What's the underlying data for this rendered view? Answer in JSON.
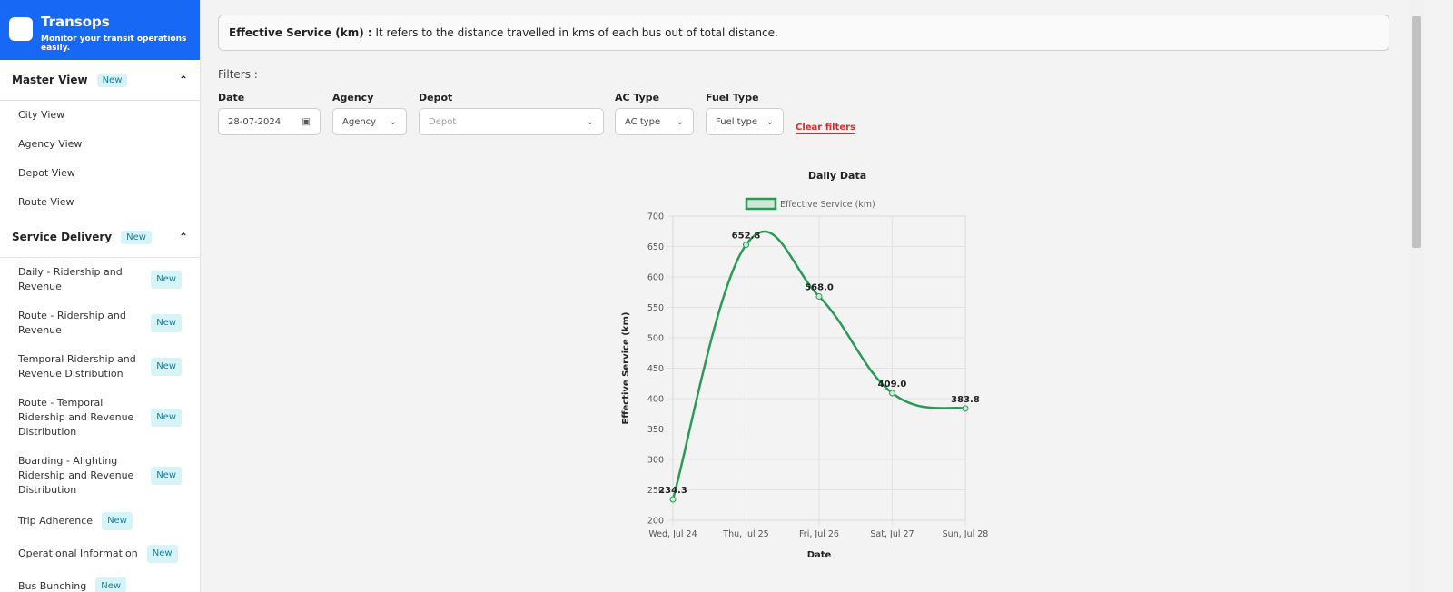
{
  "sidebar": {
    "brand": "Transops",
    "tagline": "Monitor your transit operations easily.",
    "sections": [
      {
        "title": "Master View",
        "badge": "New",
        "items": [
          {
            "label": "City View"
          },
          {
            "label": "Agency View"
          },
          {
            "label": "Depot View"
          },
          {
            "label": "Route View"
          }
        ]
      },
      {
        "title": "Service Delivery",
        "badge": "New",
        "items": [
          {
            "label": "Daily - Ridership and Revenue",
            "badge": "New"
          },
          {
            "label": "Route - Ridership and Revenue",
            "badge": "New"
          },
          {
            "label": "Temporal Ridership and Revenue Distribution",
            "badge": "New"
          },
          {
            "label": "Route - Temporal Ridership and Revenue Distribution",
            "badge": "New"
          },
          {
            "label": "Boarding - Alighting Ridership and Revenue Distribution",
            "badge": "New"
          },
          {
            "label": "Trip Adherence",
            "badge": "New"
          },
          {
            "label": "Operational Information",
            "badge": "New"
          },
          {
            "label": "Bus Bunching",
            "badge": "New"
          }
        ]
      }
    ]
  },
  "info": {
    "term": "Effective Service (km) :",
    "text": "It refers to the distance travelled in kms of each bus out of total distance."
  },
  "filters": {
    "title": "Filters :",
    "fields": [
      {
        "label": "Date",
        "value": "28-07-2024"
      },
      {
        "label": "Agency",
        "value": "Agency"
      },
      {
        "label": "Depot",
        "value": "Depot"
      },
      {
        "label": "AC Type",
        "value": "AC type"
      },
      {
        "label": "Fuel Type",
        "value": "Fuel type"
      }
    ],
    "clear": "Clear filters"
  },
  "chart_data": {
    "type": "line",
    "title": "Daily Data",
    "x_label": "Date",
    "y_label": "Effective Service (km)",
    "categories": [
      "Wed, Jul 24",
      "Thu, Jul 25",
      "Fri, Jul 26",
      "Sat, Jul 27",
      "Sun, Jul 28"
    ],
    "series": [
      {
        "name": "Effective Service (km)",
        "color": "#2a9a55",
        "values": [
          234.3,
          652.8,
          568.0,
          409.0,
          383.8
        ],
        "value_labels": [
          "234.3",
          "652.8",
          "568.0",
          "409.0",
          "383.8"
        ]
      }
    ],
    "ylim": [
      200,
      700
    ],
    "yticks": [
      200,
      250,
      300,
      350,
      400,
      450,
      500,
      550,
      600,
      650,
      700
    ],
    "grid": true,
    "legend": "top"
  }
}
